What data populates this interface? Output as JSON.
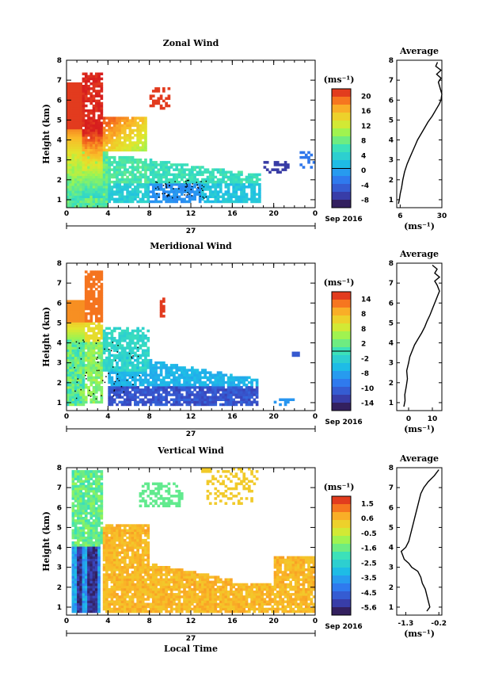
{
  "figure": {
    "xlabel": "Local Time",
    "date_label": "Sep 2016",
    "day_label": "27",
    "unit_label": "(ms⁻¹)"
  },
  "chart_data": [
    {
      "type": "heatmap",
      "title": "Zonal Wind",
      "xlabel": "",
      "ylabel": "Height (km)",
      "xticks": [
        "0",
        "4",
        "8",
        "12",
        "16",
        "20",
        "0"
      ],
      "yticks": [
        "1",
        "2",
        "3",
        "4",
        "5",
        "6",
        "7",
        "8"
      ],
      "xlim": [
        0,
        24
      ],
      "ylim": [
        0.6,
        8
      ],
      "colorbar": {
        "label": "(ms⁻¹)",
        "ticks": [
          "20",
          "16",
          "12",
          "8",
          "4",
          "0",
          "-4",
          "-8"
        ],
        "range": [
          -9,
          22
        ]
      },
      "average_profile": {
        "title": "Average",
        "xlabel": "(ms⁻¹)",
        "xticks": [
          "6",
          "30"
        ],
        "xlim": [
          4,
          30
        ],
        "height": [
          0.8,
          1.0,
          1.3,
          1.6,
          2.0,
          2.4,
          2.8,
          3.1,
          3.4,
          3.7,
          4.0,
          4.3,
          4.6,
          4.9,
          5.2,
          5.5,
          5.8,
          6.0,
          6.3,
          6.6,
          6.9,
          7.1,
          7.3,
          7.5,
          7.7,
          7.9
        ],
        "value": [
          5,
          5.5,
          6,
          6.8,
          7.5,
          8.5,
          10,
          11.5,
          13,
          14.5,
          16,
          18,
          20,
          22,
          24.5,
          26.5,
          28.5,
          29.5,
          30,
          29,
          28,
          29.5,
          27,
          29.5,
          26.5,
          27.5
        ]
      }
    },
    {
      "type": "heatmap",
      "title": "Meridional Wind",
      "xlabel": "",
      "ylabel": "Height (km)",
      "xticks": [
        "0",
        "4",
        "8",
        "12",
        "16",
        "20",
        "0"
      ],
      "yticks": [
        "1",
        "2",
        "3",
        "4",
        "5",
        "6",
        "7",
        "8"
      ],
      "xlim": [
        0,
        24
      ],
      "ylim": [
        0.6,
        8
      ],
      "colorbar": {
        "label": "(ms⁻¹)",
        "ticks": [
          "14",
          "8",
          "8",
          "2",
          "-2",
          "-8",
          "-10",
          "-14"
        ],
        "range": [
          -15,
          16
        ]
      },
      "average_profile": {
        "title": "Average",
        "xlabel": "(ms⁻¹)",
        "xticks": [
          "0",
          "10"
        ],
        "xlim": [
          -5,
          14
        ],
        "height": [
          0.8,
          1.1,
          1.4,
          1.8,
          2.2,
          2.6,
          3.0,
          3.3,
          3.6,
          3.9,
          4.2,
          4.5,
          4.8,
          5.1,
          5.4,
          5.7,
          6.0,
          6.3,
          6.6,
          6.9,
          7.1,
          7.3,
          7.5,
          7.7,
          7.9
        ],
        "value": [
          -2,
          -1.5,
          -1.6,
          -1,
          -0.5,
          -0.8,
          0,
          0.5,
          1.5,
          2.5,
          4,
          5.5,
          6.8,
          7.8,
          9,
          10,
          11,
          12,
          13,
          12,
          11,
          13,
          11,
          12,
          10
        ]
      }
    },
    {
      "type": "heatmap",
      "title": "Vertical Wind",
      "xlabel": "Local Time",
      "ylabel": "Height (km)",
      "xticks": [
        "0",
        "4",
        "8",
        "12",
        "16",
        "20",
        "0"
      ],
      "yticks": [
        "1",
        "2",
        "3",
        "4",
        "5",
        "6",
        "7",
        "8"
      ],
      "xlim": [
        0,
        24
      ],
      "ylim": [
        0.6,
        8
      ],
      "colorbar": {
        "label": "(ms⁻¹)",
        "ticks": [
          "1.5",
          "0.6",
          "-0.5",
          "-1.6",
          "-2.5",
          "-3.5",
          "-4.5",
          "-5.6"
        ],
        "range": [
          -5.8,
          2.0
        ]
      },
      "average_profile": {
        "title": "Average",
        "xlabel": "(ms⁻¹)",
        "xticks": [
          "-1.3",
          "-0.2"
        ],
        "xlim": [
          -1.6,
          -0.1
        ],
        "height": [
          0.8,
          1.0,
          1.3,
          1.6,
          1.9,
          2.2,
          2.5,
          2.8,
          3.0,
          3.2,
          3.4,
          3.6,
          3.8,
          4.0,
          4.3,
          4.6,
          4.9,
          5.2,
          5.5,
          5.8,
          6.1,
          6.4,
          6.7,
          7.0,
          7.3,
          7.6,
          7.9
        ],
        "value": [
          -0.6,
          -0.5,
          -0.55,
          -0.6,
          -0.65,
          -0.75,
          -0.8,
          -0.9,
          -1.1,
          -1.2,
          -1.35,
          -1.4,
          -1.45,
          -1.3,
          -1.2,
          -1.15,
          -1.1,
          -1.05,
          -1.0,
          -0.95,
          -0.9,
          -0.85,
          -0.8,
          -0.7,
          -0.55,
          -0.35,
          -0.2
        ]
      }
    }
  ]
}
